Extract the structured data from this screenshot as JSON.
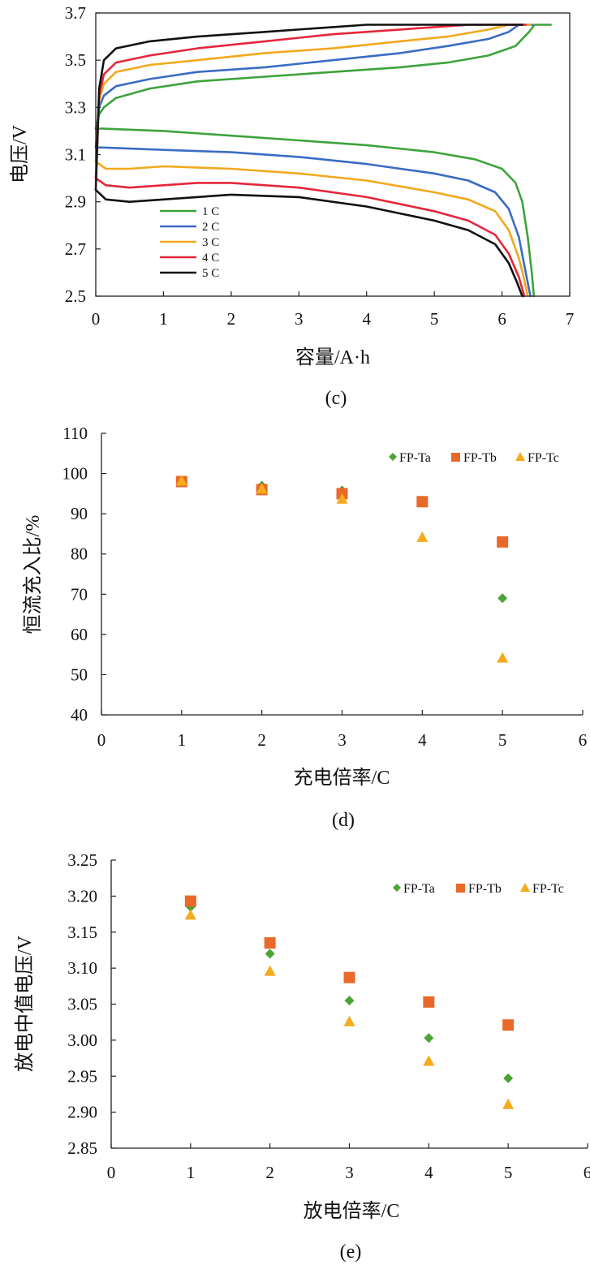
{
  "chart_data": [
    {
      "panel_label": "(c)",
      "type": "line",
      "xlabel": "容量/A·h",
      "ylabel": "电压/V",
      "xlim": [
        0,
        7
      ],
      "ylim": [
        2.5,
        3.7
      ],
      "x_ticks": [
        "0",
        "1",
        "2",
        "3",
        "4",
        "5",
        "6",
        "7"
      ],
      "y_ticks": [
        "2.5",
        "2.7",
        "2.9",
        "3.1",
        "3.3",
        "3.5",
        "3.7"
      ],
      "grid": false,
      "legend_position": "bottom-left",
      "series": [
        {
          "name": "1 C",
          "color": "#3ca33c",
          "charge": [
            [
              0,
              3.21
            ],
            [
              0.05,
              3.27
            ],
            [
              0.12,
              3.3
            ],
            [
              0.3,
              3.34
            ],
            [
              0.8,
              3.38
            ],
            [
              1.5,
              3.41
            ],
            [
              2.5,
              3.43
            ],
            [
              3.5,
              3.45
            ],
            [
              4.5,
              3.47
            ],
            [
              5.2,
              3.49
            ],
            [
              5.8,
              3.52
            ],
            [
              6.2,
              3.56
            ],
            [
              6.4,
              3.62
            ],
            [
              6.48,
              3.65
            ],
            [
              6.72,
              3.65
            ]
          ],
          "discharge": [
            [
              0,
              3.21
            ],
            [
              0.1,
              3.21
            ],
            [
              1.0,
              3.2
            ],
            [
              2.0,
              3.18
            ],
            [
              3.0,
              3.16
            ],
            [
              4.0,
              3.14
            ],
            [
              5.0,
              3.11
            ],
            [
              5.6,
              3.08
            ],
            [
              6.0,
              3.04
            ],
            [
              6.2,
              2.98
            ],
            [
              6.3,
              2.9
            ],
            [
              6.38,
              2.75
            ],
            [
              6.44,
              2.6
            ],
            [
              6.47,
              2.5
            ]
          ]
        },
        {
          "name": "2 C",
          "color": "#3a6cc4",
          "charge": [
            [
              0,
              3.13
            ],
            [
              0.05,
              3.3
            ],
            [
              0.12,
              3.35
            ],
            [
              0.3,
              3.39
            ],
            [
              0.8,
              3.42
            ],
            [
              1.5,
              3.45
            ],
            [
              2.5,
              3.47
            ],
            [
              3.5,
              3.5
            ],
            [
              4.5,
              3.53
            ],
            [
              5.2,
              3.56
            ],
            [
              5.8,
              3.59
            ],
            [
              6.1,
              3.62
            ],
            [
              6.25,
              3.65
            ],
            [
              6.45,
              3.65
            ]
          ],
          "discharge": [
            [
              0,
              3.13
            ],
            [
              0.1,
              3.13
            ],
            [
              1.0,
              3.12
            ],
            [
              2.0,
              3.11
            ],
            [
              3.0,
              3.09
            ],
            [
              4.0,
              3.06
            ],
            [
              5.0,
              3.02
            ],
            [
              5.5,
              2.99
            ],
            [
              5.9,
              2.94
            ],
            [
              6.1,
              2.87
            ],
            [
              6.25,
              2.75
            ],
            [
              6.35,
              2.6
            ],
            [
              6.42,
              2.5
            ]
          ]
        },
        {
          "name": "3 C",
          "color": "#f2a81d",
          "charge": [
            [
              0,
              3.07
            ],
            [
              0.05,
              3.33
            ],
            [
              0.12,
              3.4
            ],
            [
              0.3,
              3.45
            ],
            [
              0.8,
              3.48
            ],
            [
              1.5,
              3.5
            ],
            [
              2.5,
              3.53
            ],
            [
              3.5,
              3.55
            ],
            [
              4.5,
              3.58
            ],
            [
              5.2,
              3.6
            ],
            [
              5.8,
              3.63
            ],
            [
              6.1,
              3.65
            ],
            [
              6.42,
              3.65
            ]
          ],
          "discharge": [
            [
              0,
              3.07
            ],
            [
              0.15,
              3.04
            ],
            [
              0.5,
              3.04
            ],
            [
              1.0,
              3.05
            ],
            [
              2.0,
              3.04
            ],
            [
              3.0,
              3.02
            ],
            [
              4.0,
              2.99
            ],
            [
              5.0,
              2.94
            ],
            [
              5.5,
              2.91
            ],
            [
              5.9,
              2.86
            ],
            [
              6.1,
              2.78
            ],
            [
              6.25,
              2.66
            ],
            [
              6.32,
              2.58
            ],
            [
              6.38,
              2.5
            ]
          ]
        },
        {
          "name": "4 C",
          "color": "#e6263a",
          "charge": [
            [
              0,
              3.0
            ],
            [
              0.05,
              3.35
            ],
            [
              0.12,
              3.44
            ],
            [
              0.3,
              3.49
            ],
            [
              0.8,
              3.52
            ],
            [
              1.5,
              3.55
            ],
            [
              2.5,
              3.58
            ],
            [
              3.5,
              3.61
            ],
            [
              4.5,
              3.63
            ],
            [
              5.0,
              3.64
            ],
            [
              5.5,
              3.65
            ],
            [
              6.35,
              3.65
            ]
          ],
          "discharge": [
            [
              0,
              3.0
            ],
            [
              0.15,
              2.97
            ],
            [
              0.5,
              2.96
            ],
            [
              1.0,
              2.97
            ],
            [
              1.5,
              2.98
            ],
            [
              2.0,
              2.98
            ],
            [
              3.0,
              2.96
            ],
            [
              4.0,
              2.92
            ],
            [
              5.0,
              2.86
            ],
            [
              5.5,
              2.82
            ],
            [
              5.9,
              2.76
            ],
            [
              6.1,
              2.68
            ],
            [
              6.25,
              2.58
            ],
            [
              6.33,
              2.5
            ]
          ]
        },
        {
          "name": "5 C",
          "color": "#111111",
          "charge": [
            [
              0,
              2.95
            ],
            [
              0.05,
              3.38
            ],
            [
              0.12,
              3.5
            ],
            [
              0.3,
              3.55
            ],
            [
              0.8,
              3.58
            ],
            [
              1.5,
              3.6
            ],
            [
              2.5,
              3.62
            ],
            [
              3.5,
              3.64
            ],
            [
              4.0,
              3.65
            ],
            [
              6.3,
              3.65
            ]
          ],
          "discharge": [
            [
              0,
              2.95
            ],
            [
              0.15,
              2.91
            ],
            [
              0.5,
              2.9
            ],
            [
              1.0,
              2.91
            ],
            [
              2.0,
              2.93
            ],
            [
              3.0,
              2.92
            ],
            [
              4.0,
              2.88
            ],
            [
              5.0,
              2.82
            ],
            [
              5.5,
              2.78
            ],
            [
              5.9,
              2.72
            ],
            [
              6.1,
              2.64
            ],
            [
              6.22,
              2.56
            ],
            [
              6.3,
              2.5
            ]
          ]
        }
      ]
    },
    {
      "panel_label": "(d)",
      "type": "scatter",
      "xlabel": "充电倍率/C",
      "ylabel": "恒流充入比/%",
      "xlim": [
        0,
        6
      ],
      "ylim": [
        40,
        110
      ],
      "x_ticks": [
        "0",
        "1",
        "2",
        "3",
        "4",
        "5",
        "6"
      ],
      "y_ticks": [
        "40",
        "50",
        "60",
        "70",
        "80",
        "90",
        "100",
        "110"
      ],
      "grid": false,
      "legend_position": "top-right",
      "x": [
        1,
        2,
        3,
        4,
        5
      ],
      "series": [
        {
          "name": "FP-Ta",
          "marker": "diamond",
          "color": "#4ca336",
          "values": [
            98,
            97,
            95.8,
            null,
            69
          ]
        },
        {
          "name": "FP-Tb",
          "marker": "square",
          "color": "#e8692a",
          "values": [
            98,
            96,
            95,
            93,
            83
          ]
        },
        {
          "name": "FP-Tc",
          "marker": "triangle",
          "color": "#f5ab1c",
          "values": [
            98,
            96,
            93.5,
            84,
            54
          ]
        }
      ]
    },
    {
      "panel_label": "(e)",
      "type": "scatter",
      "xlabel": "放电倍率/C",
      "ylabel": "放电中值电压/V",
      "xlim": [
        0,
        6
      ],
      "ylim": [
        2.85,
        3.25
      ],
      "x_ticks": [
        "0",
        "1",
        "2",
        "3",
        "4",
        "5",
        "6"
      ],
      "y_ticks": [
        "2.85",
        "2.90",
        "2.95",
        "3.00",
        "3.05",
        "3.10",
        "3.15",
        "3.20",
        "3.25"
      ],
      "grid": false,
      "legend_position": "top-right",
      "x": [
        1,
        2,
        3,
        4,
        5
      ],
      "series": [
        {
          "name": "FP-Ta",
          "marker": "diamond",
          "color": "#4ca336",
          "values": [
            3.185,
            3.12,
            3.055,
            3.003,
            2.947
          ]
        },
        {
          "name": "FP-Tb",
          "marker": "square",
          "color": "#e8692a",
          "values": [
            3.193,
            3.135,
            3.087,
            3.053,
            3.021
          ]
        },
        {
          "name": "FP-Tc",
          "marker": "triangle",
          "color": "#f5ab1c",
          "values": [
            3.173,
            3.095,
            3.025,
            2.97,
            2.91
          ]
        }
      ]
    }
  ]
}
